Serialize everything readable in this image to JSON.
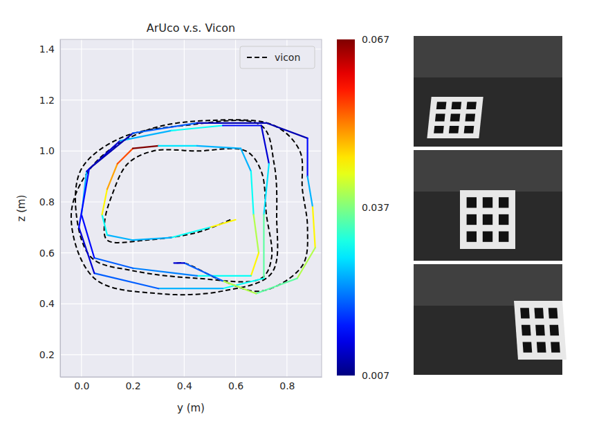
{
  "chart_data": {
    "type": "line",
    "title": "ArUco v.s. Vicon",
    "x_label": "y (m)",
    "y_label": "z (m)",
    "xlim": [
      -0.083,
      0.935
    ],
    "ylim": [
      0.113,
      1.438
    ],
    "xticks": [
      {
        "value": 0,
        "label": "0.0"
      },
      0.2,
      0.4,
      0.6,
      0.8
    ],
    "yticks": [
      0.2,
      0.4,
      0.6,
      0.8,
      {
        "value": 1,
        "label": "1.0"
      },
      1.2,
      1.4
    ],
    "grid": true,
    "legend": "upper right",
    "series": [
      {
        "name": "vicon",
        "color": "#000000",
        "line_style": "dashed",
        "x": [
          0.58,
          0.45,
          0.25,
          0.1,
          0.09,
          0.12,
          0.18,
          0.28,
          0.45,
          0.64,
          0.7,
          0.72,
          0.74,
          0.7,
          0.45,
          0.2,
          0.04,
          -0.02,
          0.0,
          0.15,
          0.4,
          0.7,
          0.75,
          0.76,
          0.74,
          0.55,
          0.3,
          0.05,
          -0.04,
          0.05,
          0.25,
          0.5,
          0.75,
          0.85,
          0.86,
          0.88,
          0.86,
          0.7,
          0.55,
          0.4,
          0.37
        ],
        "values": [
          0.73,
          0.68,
          0.65,
          0.65,
          0.72,
          0.83,
          0.95,
          1.0,
          1.0,
          1.0,
          0.92,
          0.75,
          0.58,
          0.5,
          0.5,
          0.53,
          0.58,
          0.75,
          0.93,
          1.05,
          1.1,
          1.1,
          0.95,
          0.75,
          0.52,
          0.45,
          0.44,
          0.5,
          0.75,
          0.95,
          1.08,
          1.12,
          1.1,
          1.0,
          0.85,
          0.7,
          0.55,
          0.45,
          0.49,
          0.56,
          0.56
        ]
      },
      {
        "x": [
          0.6,
          0.5,
          0.35,
          0.2,
          0.1,
          0.08,
          0.1,
          0.14,
          0.2,
          0.3,
          0.45,
          0.62,
          0.66,
          0.67,
          0.69,
          0.66,
          0.45,
          0.2,
          0.05,
          0.0,
          0.02,
          0.15,
          0.35,
          0.55,
          0.7,
          0.73,
          0.71,
          0.71,
          0.55,
          0.3,
          0.05,
          -0.01,
          0.03,
          0.2,
          0.45,
          0.72,
          0.88,
          0.88,
          0.9,
          0.91,
          0.84,
          0.68,
          0.55,
          0.4,
          0.36
        ],
        "values": [
          0.73,
          0.7,
          0.66,
          0.65,
          0.67,
          0.75,
          0.85,
          0.95,
          1.01,
          1.02,
          1.02,
          1.01,
          0.92,
          0.75,
          0.6,
          0.51,
          0.51,
          0.54,
          0.58,
          0.75,
          0.92,
          1.04,
          1.08,
          1.1,
          1.1,
          0.95,
          0.75,
          0.5,
          0.46,
          0.46,
          0.52,
          0.7,
          0.93,
          1.07,
          1.11,
          1.11,
          1.05,
          0.9,
          0.78,
          0.62,
          0.5,
          0.44,
          0.49,
          0.56,
          0.56
        ],
        "error": [
          0.045,
          0.03,
          0.025,
          0.025,
          0.03,
          0.045,
          0.05,
          0.055,
          0.067,
          0.028,
          0.025,
          0.025,
          0.03,
          0.04,
          0.045,
          0.03,
          0.022,
          0.02,
          0.015,
          0.025,
          0.012,
          0.025,
          0.03,
          0.015,
          0.012,
          0.028,
          0.035,
          0.03,
          0.025,
          0.02,
          0.012,
          0.015,
          0.01,
          0.02,
          0.01,
          0.01,
          0.015,
          0.025,
          0.045,
          0.04,
          0.035,
          0.04,
          0.02,
          0.012,
          0.01
        ]
      }
    ],
    "colorbar": {
      "range": [
        0.007,
        0.067
      ],
      "ticks": [
        0.007,
        0.037,
        0.067
      ]
    }
  }
}
